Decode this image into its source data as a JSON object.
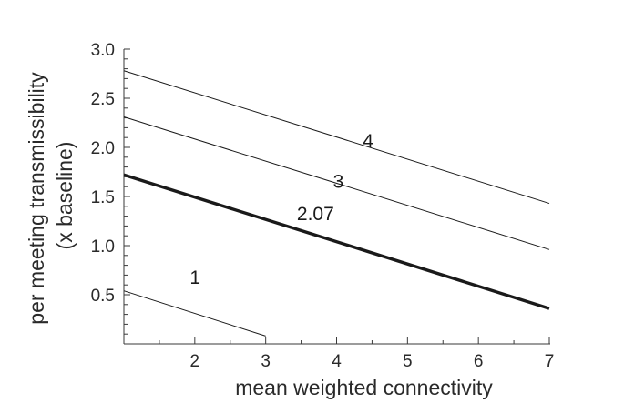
{
  "chart_data": {
    "type": "line",
    "title": "",
    "xlabel": "mean weighted connectivity",
    "ylabel_line1": "per meeting transmissibility",
    "ylabel_line2": "(x baseline)",
    "xlim": [
      1,
      7
    ],
    "ylim": [
      0,
      3.0
    ],
    "x_ticks": [
      2,
      3,
      4,
      5,
      6,
      7
    ],
    "y_ticks": [
      0.5,
      1.0,
      1.5,
      2.0,
      2.5,
      3.0
    ],
    "y_tick_labels": [
      "0.5",
      "1.0",
      "1.5",
      "2.0",
      "2.5",
      "3.0"
    ],
    "series": [
      {
        "name": "1",
        "x": [
          1,
          3
        ],
        "y": [
          0.54,
          0.08
        ],
        "bold": false
      },
      {
        "name": "2.07",
        "x": [
          1,
          7
        ],
        "y": [
          1.72,
          0.36
        ],
        "bold": true
      },
      {
        "name": "3",
        "x": [
          1,
          7
        ],
        "y": [
          2.31,
          0.96
        ],
        "bold": false
      },
      {
        "name": "4",
        "x": [
          1,
          7
        ],
        "y": [
          2.78,
          1.43
        ],
        "bold": false
      }
    ],
    "annotations": [
      {
        "text": "1",
        "x": 1.93,
        "y": 0.61
      },
      {
        "text": "2.07",
        "x": 3.44,
        "y": 1.26
      },
      {
        "text": "3",
        "x": 3.95,
        "y": 1.59
      },
      {
        "text": "4",
        "x": 4.37,
        "y": 2.0
      }
    ]
  }
}
